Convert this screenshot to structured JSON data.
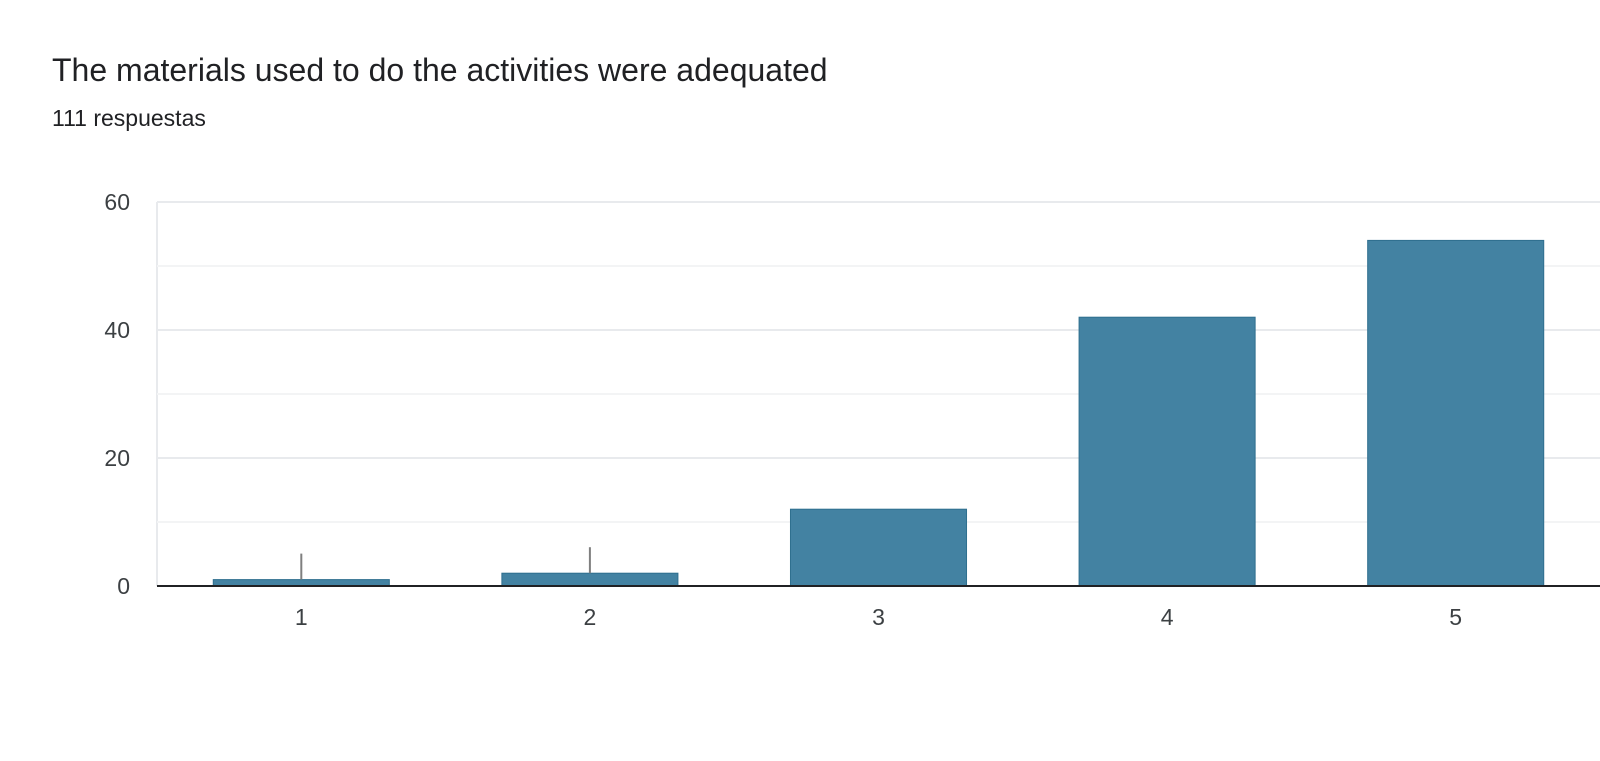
{
  "header": {
    "title": "The materials used to do the activities were adequated",
    "subtitle": "111 respuestas"
  },
  "chart_data": {
    "type": "bar",
    "title": "The materials used to do the activities were adequated",
    "subtitle": "111 respuestas",
    "categories": [
      "1",
      "2",
      "3",
      "4",
      "5"
    ],
    "values": [
      1,
      2,
      12,
      42,
      54
    ],
    "ylim": [
      0,
      60
    ],
    "yticks": [
      0,
      20,
      40,
      60
    ],
    "grid": true,
    "bar_color": "#4382a2",
    "gridline_color": "#e8eaed",
    "axis_color": "#202124"
  }
}
